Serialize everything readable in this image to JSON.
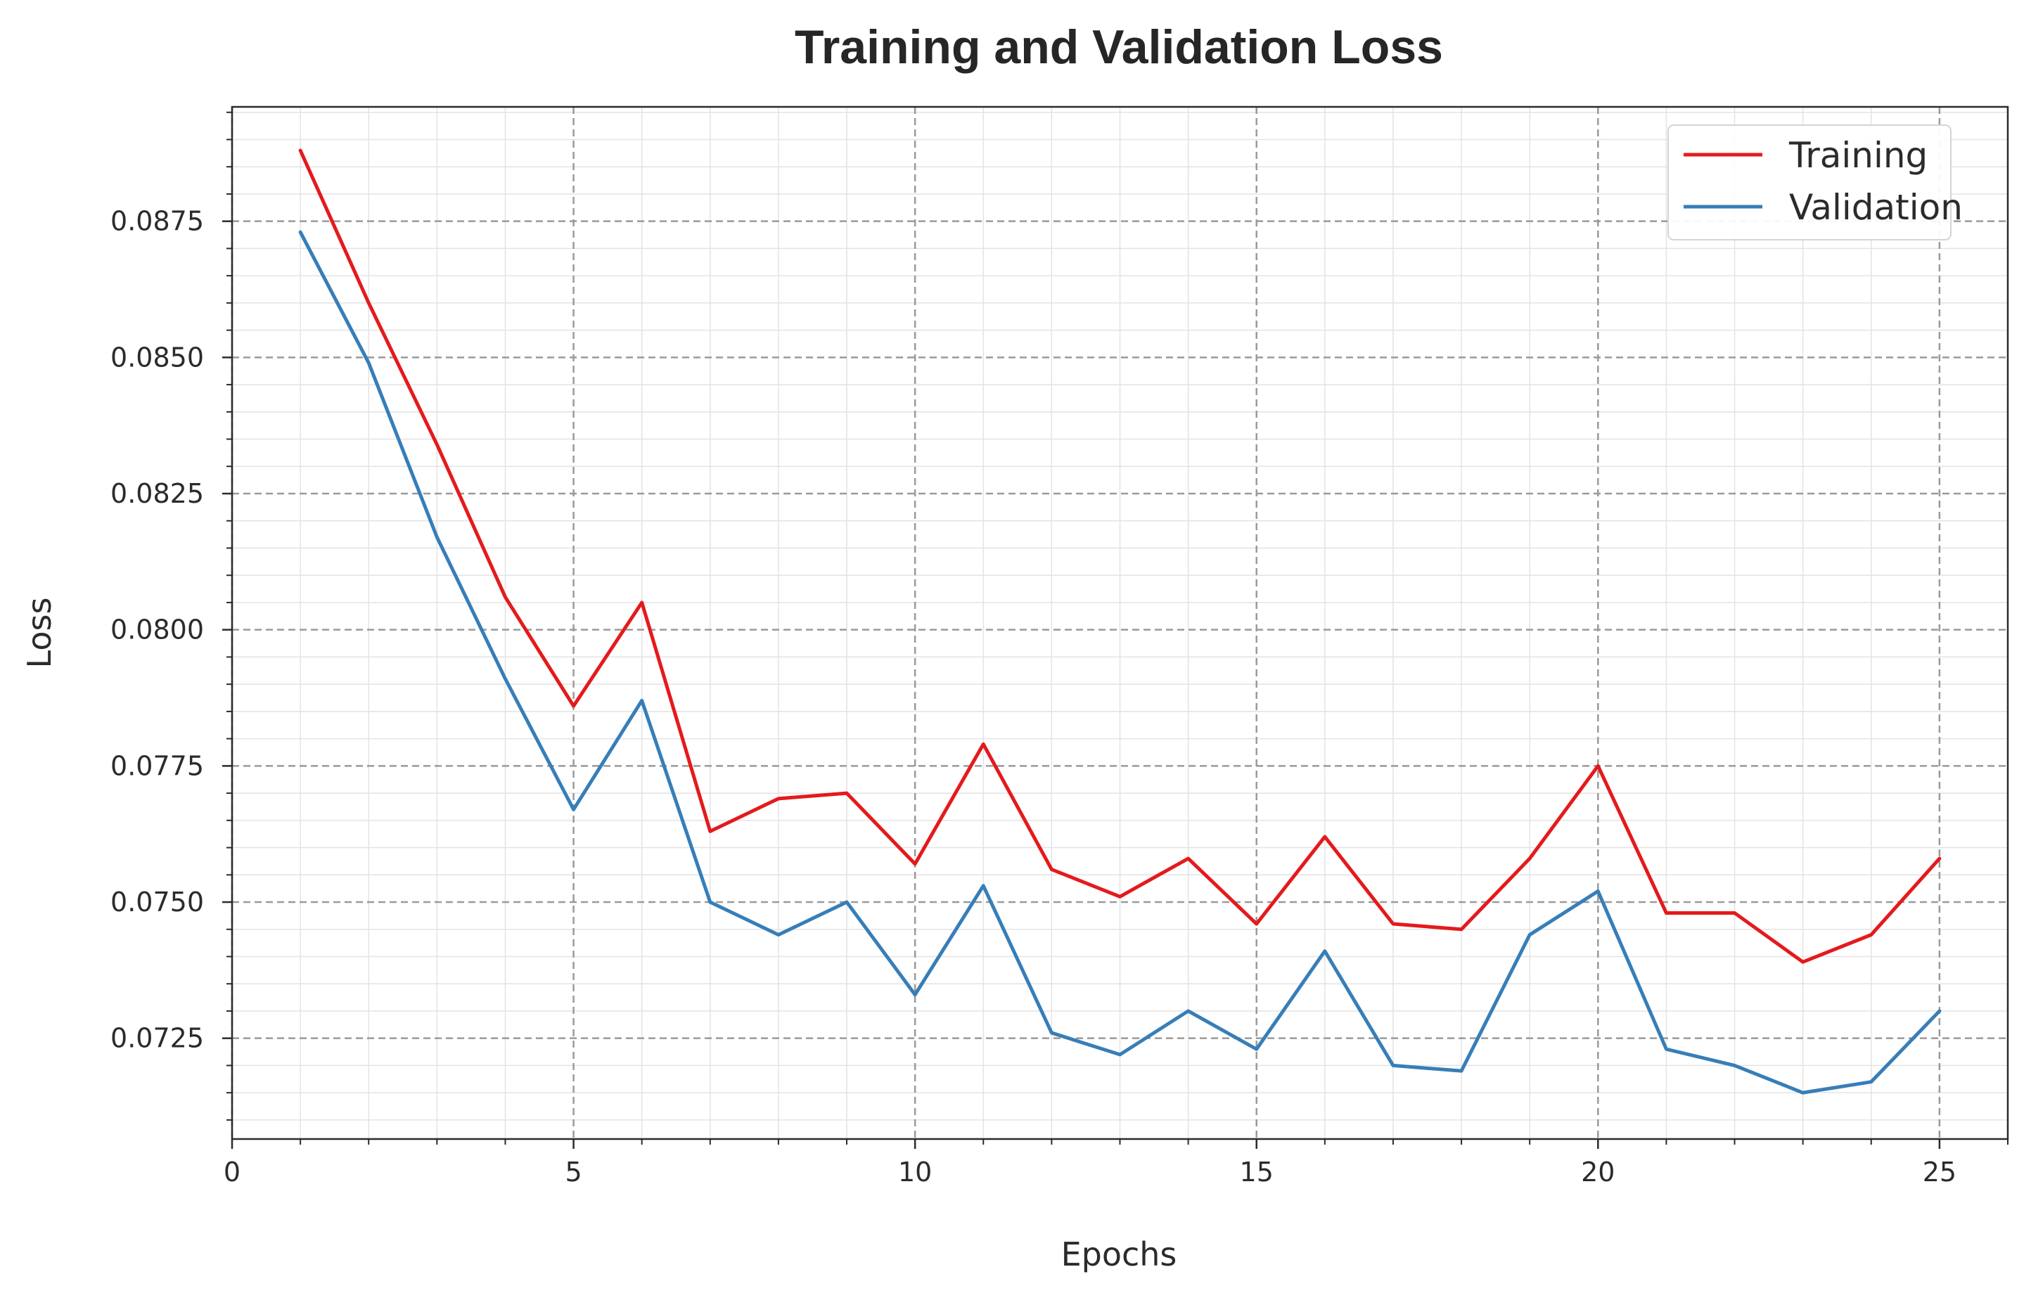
{
  "chart_data": {
    "type": "line",
    "title": "Training and Validation Loss",
    "xlabel": "Epochs",
    "ylabel": "Loss",
    "xlim": [
      0,
      26.0
    ],
    "ylim": [
      0.07065,
      0.0896
    ],
    "x_ticks": [
      0,
      5,
      10,
      15,
      20,
      25
    ],
    "x_tick_labels": [
      "0",
      "5",
      "10",
      "15",
      "20",
      "25"
    ],
    "y_ticks": [
      0.0725,
      0.075,
      0.0775,
      0.08,
      0.0825,
      0.085,
      0.0875
    ],
    "y_tick_labels": [
      "0.0725",
      "0.0750",
      "0.0775",
      "0.0800",
      "0.0825",
      "0.0850",
      "0.0875"
    ],
    "grid": true,
    "legend_position": "top-right",
    "x": [
      1,
      2,
      3,
      4,
      5,
      6,
      7,
      8,
      9,
      10,
      11,
      12,
      13,
      14,
      15,
      16,
      17,
      18,
      19,
      20,
      21,
      22,
      23,
      24,
      25
    ],
    "series": [
      {
        "name": "Training",
        "color": "#e41a1c",
        "values": [
          0.0888,
          0.086,
          0.0834,
          0.0806,
          0.0786,
          0.0805,
          0.0763,
          0.0769,
          0.077,
          0.0757,
          0.0779,
          0.0756,
          0.0751,
          0.0758,
          0.0746,
          0.0762,
          0.0746,
          0.0745,
          0.0758,
          0.0775,
          0.0748,
          0.0748,
          0.0739,
          0.0744,
          0.0758
        ]
      },
      {
        "name": "Validation",
        "color": "#377eb8",
        "values": [
          0.0873,
          0.0849,
          0.0817,
          0.0791,
          0.0767,
          0.0787,
          0.075,
          0.0744,
          0.075,
          0.0733,
          0.0753,
          0.0726,
          0.0722,
          0.073,
          0.0723,
          0.0741,
          0.072,
          0.0719,
          0.0744,
          0.0752,
          0.0723,
          0.072,
          0.0715,
          0.0717,
          0.073
        ]
      }
    ]
  }
}
